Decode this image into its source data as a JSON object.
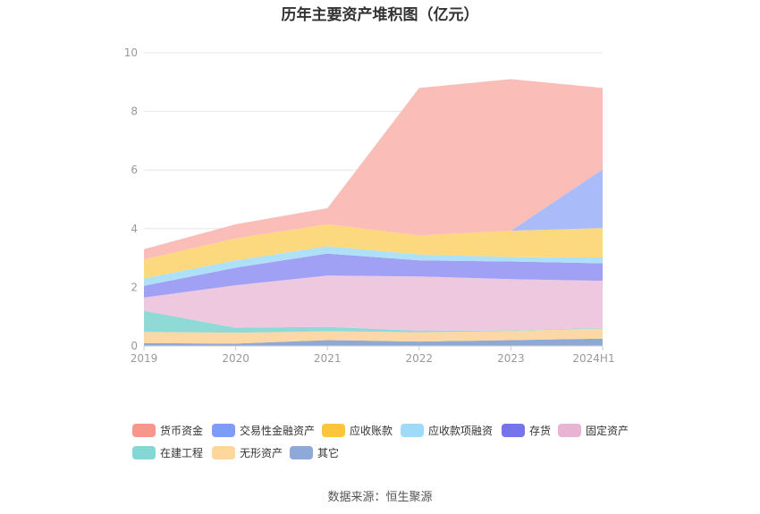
{
  "chart_data": {
    "type": "area",
    "stacked": true,
    "title": "历年主要资产堆积图（亿元）",
    "categories": [
      "2019",
      "2020",
      "2021",
      "2022",
      "2023",
      "2024H1"
    ],
    "ylim": [
      0,
      10
    ],
    "yticks": [
      0,
      2,
      4,
      6,
      8,
      10
    ],
    "grid": true,
    "legend_position": "bottom",
    "series": [
      {
        "name": "其它",
        "color": "#8fa9d6",
        "values": [
          0.1,
          0.08,
          0.2,
          0.15,
          0.2,
          0.25
        ]
      },
      {
        "name": "无形资产",
        "color": "#fcd8a6",
        "values": [
          0.38,
          0.37,
          0.3,
          0.32,
          0.31,
          0.35
        ]
      },
      {
        "name": "在建工程",
        "color": "#8fd9d6",
        "values": [
          0.72,
          0.17,
          0.15,
          0.05,
          0.02,
          0.02
        ]
      },
      {
        "name": "固定资产",
        "color": "#eec8df",
        "values": [
          0.45,
          1.45,
          1.75,
          1.85,
          1.75,
          1.6
        ]
      },
      {
        "name": "存货",
        "color": "#a0a0f5",
        "values": [
          0.4,
          0.6,
          0.75,
          0.55,
          0.6,
          0.6
        ]
      },
      {
        "name": "应收款项融资",
        "color": "#aee1f7",
        "values": [
          0.25,
          0.25,
          0.25,
          0.2,
          0.15,
          0.2
        ]
      },
      {
        "name": "应收账款",
        "color": "#fcd87e",
        "values": [
          0.65,
          0.75,
          0.75,
          0.65,
          0.9,
          1.0
        ]
      },
      {
        "name": "交易性金融资产",
        "color": "#a9bbf9",
        "values": [
          0,
          0,
          0,
          0,
          0,
          2.0
        ]
      },
      {
        "name": "货币资金",
        "color": "#fbbdb7",
        "values": [
          0.35,
          0.48,
          0.55,
          5.03,
          5.17,
          2.78
        ]
      }
    ]
  },
  "legend": {
    "items": [
      {
        "label": "货币资金",
        "color": "#f7978b"
      },
      {
        "label": "交易性金融资产",
        "color": "#7c9cf7"
      },
      {
        "label": "应收账款",
        "color": "#fcc63c"
      },
      {
        "label": "应收款项融资",
        "color": "#9fdaf8"
      },
      {
        "label": "存货",
        "color": "#7674ec"
      },
      {
        "label": "固定资产",
        "color": "#e8b4d4"
      },
      {
        "label": "在建工程",
        "color": "#86d6d6"
      },
      {
        "label": "无形资产",
        "color": "#fdd79c"
      },
      {
        "label": "其它",
        "color": "#8ea8d8"
      }
    ]
  },
  "source": "数据来源：恒生聚源"
}
